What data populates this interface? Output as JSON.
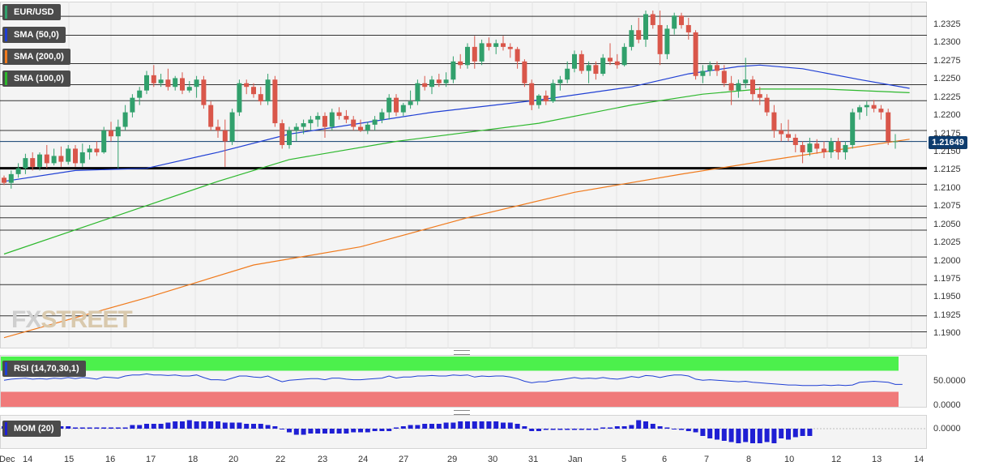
{
  "chart_data": [
    {
      "type": "candlestick",
      "title": "EUR/USD",
      "last_price": "1.21649",
      "y_ticks": [
        "1.2325",
        "1.2300",
        "1.2275",
        "1.2250",
        "1.2225",
        "1.2200",
        "1.2175",
        "1.2150",
        "1.2125",
        "1.2100",
        "1.2075",
        "1.2050",
        "1.2025",
        "1.2000",
        "1.1975",
        "1.1950",
        "1.1925",
        "1.1900"
      ],
      "ylim": [
        1.1888,
        1.2345
      ],
      "x_ticks": [
        "Dec",
        "14",
        "15",
        "16",
        "17",
        "18",
        "20",
        "22",
        "23",
        "24",
        "27",
        "29",
        "30",
        "31",
        "Jan",
        "5",
        "6",
        "7",
        "8",
        "10",
        "12",
        "13",
        "14"
      ],
      "horizontal_levels": [
        1.2337,
        1.2311,
        1.2272,
        1.2243,
        1.2221,
        1.218,
        1.2128,
        1.2106,
        1.2076,
        1.206,
        1.2043,
        1.2006,
        1.1968,
        1.1925,
        1.1903
      ],
      "support_line": 1.2128,
      "candles": [
        [
          1.2115,
          1.2118,
          1.2105,
          1.2108
        ],
        [
          1.2108,
          1.2125,
          1.21,
          1.212
        ],
        [
          1.212,
          1.2135,
          1.2115,
          1.2128
        ],
        [
          1.2128,
          1.2148,
          1.212,
          1.2142
        ],
        [
          1.2142,
          1.215,
          1.2125,
          1.213
        ],
        [
          1.213,
          1.215,
          1.2125,
          1.2147
        ],
        [
          1.2147,
          1.216,
          1.2128,
          1.2135
        ],
        [
          1.2135,
          1.2155,
          1.2132,
          1.2145
        ],
        [
          1.2145,
          1.2158,
          1.213,
          1.2137
        ],
        [
          1.2137,
          1.216,
          1.2133,
          1.2155
        ],
        [
          1.2155,
          1.216,
          1.213,
          1.2135
        ],
        [
          1.2135,
          1.2162,
          1.213,
          1.215
        ],
        [
          1.215,
          1.216,
          1.214,
          1.2155
        ],
        [
          1.2155,
          1.2165,
          1.2145,
          1.215
        ],
        [
          1.215,
          1.2185,
          1.2148,
          1.218
        ],
        [
          1.218,
          1.2192,
          1.2165,
          1.2172
        ],
        [
          1.2172,
          1.2195,
          1.2128,
          1.2185
        ],
        [
          1.2185,
          1.2215,
          1.218,
          1.2205
        ],
        [
          1.2205,
          1.223,
          1.2198,
          1.2225
        ],
        [
          1.2225,
          1.224,
          1.2215,
          1.2235
        ],
        [
          1.2235,
          1.2262,
          1.223,
          1.2256
        ],
        [
          1.2256,
          1.227,
          1.224,
          1.2245
        ],
        [
          1.2245,
          1.2258,
          1.224,
          1.225
        ],
        [
          1.225,
          1.2265,
          1.2235,
          1.224
        ],
        [
          1.224,
          1.2255,
          1.2235,
          1.2252
        ],
        [
          1.2252,
          1.226,
          1.223,
          1.2235
        ],
        [
          1.2235,
          1.2248,
          1.2232,
          1.224
        ],
        [
          1.224,
          1.2255,
          1.2225,
          1.225
        ],
        [
          1.225,
          1.2255,
          1.221,
          1.2215
        ],
        [
          1.2215,
          1.222,
          1.218,
          1.2185
        ],
        [
          1.2185,
          1.2195,
          1.217,
          1.218
        ],
        [
          1.218,
          1.2195,
          1.213,
          1.2165
        ],
        [
          1.2165,
          1.221,
          1.216,
          1.2205
        ],
        [
          1.2205,
          1.225,
          1.22,
          1.2245
        ],
        [
          1.2245,
          1.225,
          1.223,
          1.224
        ],
        [
          1.224,
          1.2245,
          1.2225,
          1.223
        ],
        [
          1.223,
          1.224,
          1.2215,
          1.222
        ],
        [
          1.222,
          1.2258,
          1.2215,
          1.225
        ],
        [
          1.225,
          1.2255,
          1.2185,
          1.219
        ],
        [
          1.219,
          1.2195,
          1.2155,
          1.216
        ],
        [
          1.216,
          1.2185,
          1.2155,
          1.218
        ],
        [
          1.218,
          1.219,
          1.2165,
          1.2185
        ],
        [
          1.2185,
          1.2195,
          1.2175,
          1.219
        ],
        [
          1.219,
          1.22,
          1.218,
          1.2195
        ],
        [
          1.2195,
          1.2205,
          1.2185,
          1.22
        ],
        [
          1.22,
          1.2205,
          1.217,
          1.2185
        ],
        [
          1.2185,
          1.221,
          1.218,
          1.2205
        ],
        [
          1.2205,
          1.2212,
          1.2195,
          1.22
        ],
        [
          1.22,
          1.2208,
          1.219,
          1.2195
        ],
        [
          1.2195,
          1.22,
          1.218,
          1.2185
        ],
        [
          1.2185,
          1.2195,
          1.2178,
          1.218
        ],
        [
          1.218,
          1.2192,
          1.2175,
          1.2188
        ],
        [
          1.2188,
          1.22,
          1.218,
          1.2195
        ],
        [
          1.2195,
          1.221,
          1.219,
          1.2205
        ],
        [
          1.2205,
          1.223,
          1.2195,
          1.2225
        ],
        [
          1.2225,
          1.223,
          1.22,
          1.2205
        ],
        [
          1.2205,
          1.2218,
          1.22,
          1.2215
        ],
        [
          1.2215,
          1.2235,
          1.221,
          1.222
        ],
        [
          1.222,
          1.225,
          1.2215,
          1.2245
        ],
        [
          1.2245,
          1.2255,
          1.2235,
          1.224
        ],
        [
          1.224,
          1.2255,
          1.223,
          1.225
        ],
        [
          1.225,
          1.2258,
          1.224,
          1.2245
        ],
        [
          1.2245,
          1.226,
          1.224,
          1.225
        ],
        [
          1.225,
          1.2282,
          1.2245,
          1.2275
        ],
        [
          1.2275,
          1.2285,
          1.2265,
          1.227
        ],
        [
          1.227,
          1.23,
          1.2265,
          1.2295
        ],
        [
          1.2295,
          1.231,
          1.2265,
          1.2275
        ],
        [
          1.2275,
          1.2305,
          1.227,
          1.23
        ],
        [
          1.23,
          1.2308,
          1.229,
          1.2295
        ],
        [
          1.2295,
          1.2305,
          1.2285,
          1.23
        ],
        [
          1.23,
          1.231,
          1.229,
          1.2295
        ],
        [
          1.2295,
          1.23,
          1.228,
          1.2292
        ],
        [
          1.2292,
          1.2295,
          1.2265,
          1.2275
        ],
        [
          1.2275,
          1.2278,
          1.224,
          1.2245
        ],
        [
          1.2245,
          1.225,
          1.2208,
          1.2215
        ],
        [
          1.2215,
          1.223,
          1.221,
          1.2228
        ],
        [
          1.2228,
          1.2235,
          1.2215,
          1.222
        ],
        [
          1.222,
          1.225,
          1.2218,
          1.2245
        ],
        [
          1.2245,
          1.2255,
          1.2235,
          1.225
        ],
        [
          1.225,
          1.2275,
          1.2245,
          1.2265
        ],
        [
          1.2265,
          1.229,
          1.226,
          1.2285
        ],
        [
          1.2285,
          1.229,
          1.2258,
          1.2262
        ],
        [
          1.2262,
          1.2275,
          1.2245,
          1.227
        ],
        [
          1.227,
          1.2275,
          1.225,
          1.2258
        ],
        [
          1.2258,
          1.2285,
          1.2255,
          1.228
        ],
        [
          1.228,
          1.23,
          1.227,
          1.2275
        ],
        [
          1.2275,
          1.2285,
          1.2265,
          1.227
        ],
        [
          1.227,
          1.23,
          1.2268,
          1.2295
        ],
        [
          1.2295,
          1.2325,
          1.229,
          1.2318
        ],
        [
          1.2318,
          1.2335,
          1.23,
          1.2305
        ],
        [
          1.2305,
          1.2345,
          1.2295,
          1.234
        ],
        [
          1.234,
          1.2345,
          1.232,
          1.2325
        ],
        [
          1.2325,
          1.2345,
          1.227,
          1.2285
        ],
        [
          1.2285,
          1.2325,
          1.2278,
          1.232
        ],
        [
          1.232,
          1.2342,
          1.2312,
          1.2338
        ],
        [
          1.2338,
          1.2342,
          1.232,
          1.2325
        ],
        [
          1.2325,
          1.2335,
          1.2305,
          1.2315
        ],
        [
          1.2315,
          1.2318,
          1.225,
          1.2255
        ],
        [
          1.2255,
          1.227,
          1.2245,
          1.2262
        ],
        [
          1.2262,
          1.2275,
          1.2255,
          1.227
        ],
        [
          1.227,
          1.2275,
          1.2255,
          1.2262
        ],
        [
          1.2262,
          1.227,
          1.224,
          1.2245
        ],
        [
          1.2245,
          1.2255,
          1.2215,
          1.2235
        ],
        [
          1.2235,
          1.225,
          1.2225,
          1.2245
        ],
        [
          1.2245,
          1.228,
          1.2238,
          1.225
        ],
        [
          1.225,
          1.2255,
          1.222,
          1.223
        ],
        [
          1.223,
          1.224,
          1.2215,
          1.2225
        ],
        [
          1.2225,
          1.223,
          1.22,
          1.2205
        ],
        [
          1.2205,
          1.2215,
          1.217,
          1.218
        ],
        [
          1.218,
          1.219,
          1.2165,
          1.2175
        ],
        [
          1.2175,
          1.2195,
          1.2165,
          1.217
        ],
        [
          1.217,
          1.2175,
          1.215,
          1.216
        ],
        [
          1.216,
          1.2165,
          1.2135,
          1.215
        ],
        [
          1.215,
          1.217,
          1.2145,
          1.2162
        ],
        [
          1.2162,
          1.2168,
          1.2148,
          1.2155
        ],
        [
          1.2155,
          1.2165,
          1.2142,
          1.215
        ],
        [
          1.215,
          1.217,
          1.2142,
          1.2165
        ],
        [
          1.2165,
          1.217,
          1.214,
          1.215
        ],
        [
          1.215,
          1.2165,
          1.214,
          1.216
        ],
        [
          1.216,
          1.221,
          1.2155,
          1.2205
        ],
        [
          1.2205,
          1.2215,
          1.2195,
          1.2212
        ],
        [
          1.2212,
          1.222,
          1.22,
          1.2215
        ],
        [
          1.2215,
          1.2222,
          1.2205,
          1.221
        ],
        [
          1.221,
          1.2215,
          1.2195,
          1.2205
        ],
        [
          1.2205,
          1.221,
          1.216,
          1.2165
        ],
        [
          1.2165,
          1.2175,
          1.2155,
          1.2165
        ]
      ],
      "sma_50": [
        [
          0,
          1.211
        ],
        [
          10,
          1.2125
        ],
        [
          20,
          1.2128
        ],
        [
          30,
          1.215
        ],
        [
          40,
          1.2175
        ],
        [
          50,
          1.219
        ],
        [
          60,
          1.2205
        ],
        [
          75,
          1.2222
        ],
        [
          88,
          1.224
        ],
        [
          96,
          1.2258
        ],
        [
          103,
          1.2268
        ],
        [
          106,
          1.227
        ],
        [
          112,
          1.2265
        ],
        [
          120,
          1.225
        ],
        [
          127,
          1.2238
        ]
      ],
      "sma_100": [
        [
          0,
          1.201
        ],
        [
          15,
          1.206
        ],
        [
          30,
          1.211
        ],
        [
          40,
          1.214
        ],
        [
          55,
          1.2165
        ],
        [
          75,
          1.219
        ],
        [
          88,
          1.2215
        ],
        [
          98,
          1.223
        ],
        [
          106,
          1.2237
        ],
        [
          115,
          1.2237
        ],
        [
          127,
          1.2232
        ]
      ],
      "sma_200": [
        [
          0,
          1.1895
        ],
        [
          20,
          1.195
        ],
        [
          35,
          1.1995
        ],
        [
          50,
          1.202
        ],
        [
          65,
          1.206
        ],
        [
          80,
          1.2095
        ],
        [
          95,
          1.212
        ],
        [
          108,
          1.214
        ],
        [
          118,
          1.2155
        ],
        [
          127,
          1.2168
        ]
      ],
      "colors": {
        "up": "#31a06c",
        "down": "#d9564a",
        "sma_50": "#1f3fd4",
        "sma_100": "#2db82d",
        "sma_200": "#f07a1c",
        "level": "#333333",
        "last_price_line": "#0d3c6e"
      }
    },
    {
      "type": "line",
      "title": "RSI (14,70,30,1)",
      "y_ticks": [
        "50.0000",
        "0.0000"
      ],
      "ylim": [
        0,
        100
      ],
      "overbought": 70,
      "oversold": 30,
      "values": [
        52,
        54,
        55,
        56,
        54,
        55,
        54,
        56,
        55,
        57,
        55,
        57,
        56,
        54,
        58,
        57,
        56,
        60,
        62,
        62,
        64,
        62,
        62,
        61,
        62,
        60,
        60,
        62,
        57,
        53,
        53,
        52,
        56,
        60,
        60,
        58,
        57,
        60,
        54,
        49,
        52,
        53,
        54,
        55,
        55,
        53,
        56,
        56,
        54,
        53,
        53,
        54,
        55,
        56,
        60,
        56,
        58,
        58,
        60,
        60,
        61,
        60,
        60,
        62,
        61,
        62,
        58,
        60,
        59,
        60,
        60,
        58,
        55,
        50,
        47,
        49,
        49,
        52,
        53,
        55,
        57,
        55,
        56,
        55,
        57,
        55,
        54,
        56,
        59,
        57,
        61,
        60,
        57,
        60,
        62,
        62,
        60,
        54,
        52,
        53,
        52,
        51,
        50,
        49,
        50,
        48,
        47,
        46,
        45,
        44,
        43,
        43,
        42,
        42,
        42,
        43,
        42,
        43,
        42,
        43,
        48,
        49,
        50,
        49,
        48,
        44,
        44
      ],
      "colors": {
        "line": "#1f3fd4",
        "overbought_band": "#4cf04c",
        "oversold_band": "#f07a7a"
      }
    },
    {
      "type": "bar",
      "title": "MOM (20)",
      "y_ticks": [
        "0.0000"
      ],
      "values": [
        1,
        1.5,
        1.5,
        2,
        2,
        2,
        1.5,
        1.5,
        1,
        1,
        0.5,
        0.5,
        0.5,
        0.5,
        0.5,
        0.5,
        0.5,
        0.5,
        1.5,
        1.5,
        2,
        2,
        2,
        2.5,
        3,
        3,
        3.5,
        3,
        3,
        3,
        3,
        2.5,
        2.5,
        2.5,
        2,
        2,
        2,
        1.5,
        1,
        0,
        -1.5,
        -2.5,
        -2.5,
        -2,
        -2,
        -2,
        -2,
        -2,
        -2,
        -1.5,
        -1.5,
        -1.5,
        -1,
        -1,
        -1,
        0.5,
        1,
        1.5,
        1.5,
        2,
        2,
        2,
        2.5,
        2.5,
        3,
        3,
        3,
        3,
        3,
        3,
        2.5,
        2.5,
        2,
        1,
        -1,
        -1,
        -0.5,
        -0.5,
        -0.5,
        -0.5,
        -0.5,
        -0.5,
        -0.5,
        -0.5,
        0.5,
        0.5,
        1,
        1,
        1.5,
        3.5,
        3,
        2,
        1,
        0.5,
        0,
        -0.5,
        -1,
        -1.5,
        -3,
        -4,
        -4.5,
        -5,
        -5.5,
        -6,
        -5.5,
        -6,
        -6,
        -5.5,
        -6,
        -4,
        -4.5,
        -3.5,
        -3,
        -3
      ],
      "colors": {
        "bar": "#1f1fd4"
      }
    }
  ],
  "legends": [
    {
      "label": "EUR/USD",
      "color": "#31a06c"
    },
    {
      "label": "SMA (50,0)",
      "color": "#1f3fd4"
    },
    {
      "label": "SMA (200,0)",
      "color": "#f07a1c"
    },
    {
      "label": "SMA (100,0)",
      "color": "#2db82d"
    }
  ],
  "watermark": {
    "fx": "FX",
    "street": "STREET"
  }
}
